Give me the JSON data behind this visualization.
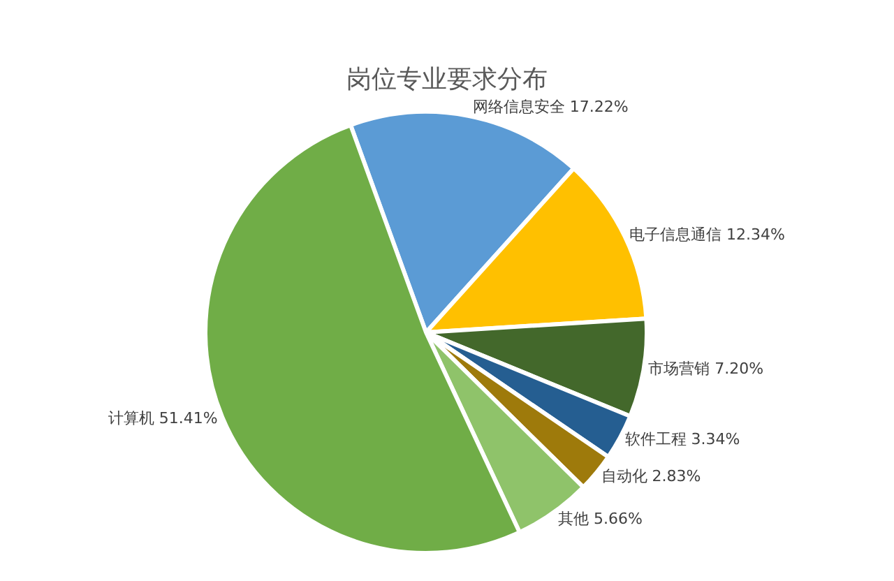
{
  "chart_data": {
    "type": "pie",
    "title": "岗位专业要求分布",
    "categories": [
      "网络信息安全",
      "电子信息通信",
      "市场营销",
      "软件工程",
      "自动化",
      "其他",
      "计算机"
    ],
    "values": [
      17.22,
      12.34,
      7.2,
      3.34,
      2.83,
      5.66,
      51.41
    ],
    "value_labels": [
      "17.22%",
      "12.34%",
      "7.20%",
      "3.34%",
      "2.83%",
      "5.66%",
      "51.41%"
    ],
    "colors": [
      "#5b9bd5",
      "#ffc000",
      "#43682b",
      "#255e91",
      "#9e7a0b",
      "#8fc36a",
      "#70ad47"
    ],
    "legend": false
  }
}
